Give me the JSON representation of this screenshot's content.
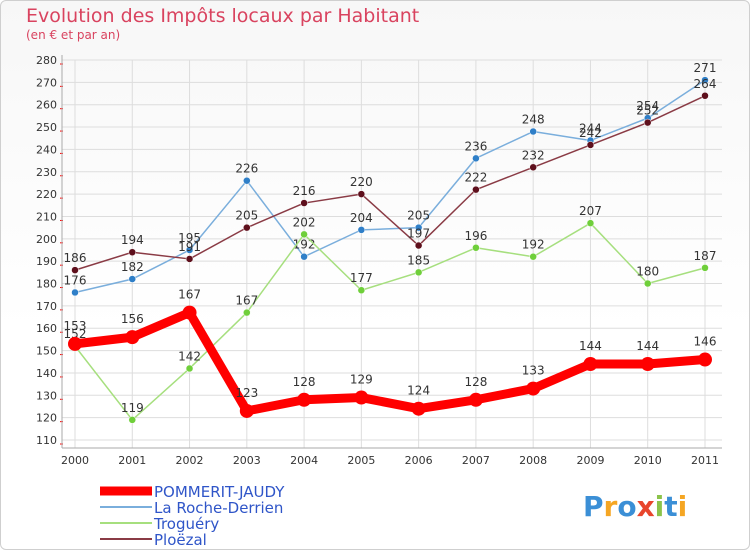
{
  "chart_data": {
    "type": "line",
    "title": "Evolution des Impôts locaux par Habitant",
    "subtitle": "(en € et par an)",
    "xlabel": "",
    "ylabel": "",
    "ylim": [
      110,
      280
    ],
    "yticks": [
      110,
      120,
      130,
      140,
      150,
      160,
      170,
      180,
      190,
      200,
      210,
      220,
      230,
      240,
      250,
      260,
      270,
      280
    ],
    "x": [
      "2000",
      "2001",
      "2002",
      "2003",
      "2004",
      "2005",
      "2006",
      "2007",
      "2008",
      "2009",
      "2010",
      "2011"
    ],
    "grid": true,
    "legend_position": "bottom-left",
    "series": [
      {
        "name": "POMMERIT-JAUDY",
        "color": "#ff0000",
        "values": [
          153,
          156,
          167,
          123,
          128,
          129,
          124,
          128,
          133,
          144,
          144,
          146
        ],
        "marker": "#ff0000"
      },
      {
        "name": "La Roche-Derrien",
        "color": "#7aaedc",
        "values": [
          176,
          182,
          195,
          226,
          192,
          204,
          205,
          236,
          248,
          244,
          254,
          271
        ],
        "marker": "#2f7fc8"
      },
      {
        "name": "Troguéry",
        "color": "#a6df7e",
        "values": [
          152,
          119,
          142,
          167,
          202,
          177,
          185,
          196,
          192,
          207,
          180,
          187
        ],
        "marker": "#6fcf3a"
      },
      {
        "name": "Ploëzal",
        "color": "#8a3b45",
        "values": [
          186,
          194,
          191,
          205,
          216,
          220,
          197,
          222,
          232,
          242,
          252,
          264
        ],
        "marker": "#5e0f1c"
      }
    ]
  },
  "logo": {
    "text": "Proxiti",
    "colors": [
      "#3b8fd6",
      "#f5a623",
      "#3b8fd6",
      "#e8452c",
      "#8bc34a",
      "#3b8fd6",
      "#f5a623"
    ]
  }
}
